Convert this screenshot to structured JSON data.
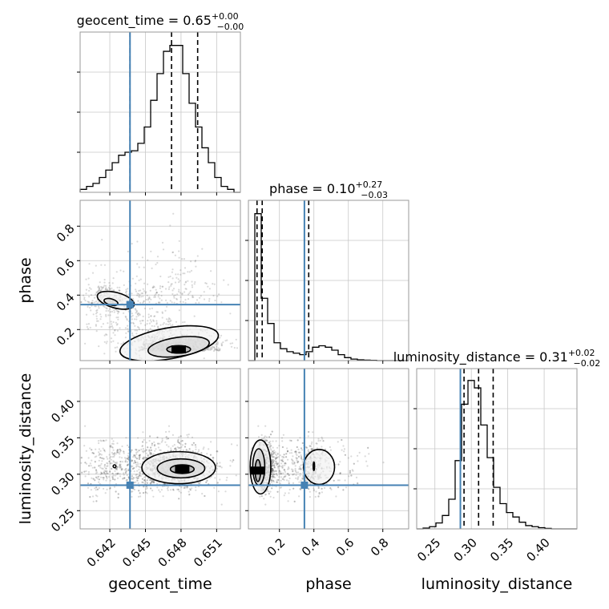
{
  "chart_data": {
    "type": "corner",
    "parameters": [
      "geocent_time",
      "phase",
      "luminosity_distance"
    ],
    "axis_labels": {
      "geocent_time": "geocent_time",
      "phase": "phase",
      "luminosity_distance": "luminosity_distance"
    },
    "truths": {
      "geocent_time": 0.6437,
      "phase": 0.345,
      "luminosity_distance": 0.285
    },
    "quantiles": {
      "geocent_time": [
        0.6437,
        0.6472,
        0.6494
      ],
      "phase": [
        0.07,
        0.1,
        0.37
      ],
      "luminosity_distance": [
        0.29,
        0.31,
        0.33
      ]
    },
    "titles": [
      {
        "param": "geocent_time",
        "text": "geocent_time = 0.65",
        "plus": "+0.00",
        "minus": "−0.00"
      },
      {
        "param": "phase",
        "text": "phase = 0.10",
        "plus": "+0.27",
        "minus": "−0.03"
      },
      {
        "param": "luminosity_distance",
        "text": "luminosity_distance = 0.31",
        "plus": "+0.02",
        "minus": "−0.02"
      }
    ],
    "ranges": {
      "geocent_time": [
        0.6395,
        0.653
      ],
      "phase": [
        0.02,
        0.95
      ],
      "luminosity_distance": [
        0.225,
        0.445
      ]
    },
    "ticks": {
      "geocent_time": [
        0.642,
        0.645,
        0.648,
        0.651
      ],
      "geocent_time_labels": [
        "0.642",
        "0.645",
        "0.648",
        "0.651"
      ],
      "phase": [
        0.2,
        0.4,
        0.6,
        0.8
      ],
      "phase_labels": [
        "0.2",
        "0.4",
        "0.6",
        "0.8"
      ],
      "luminosity_distance": [
        0.25,
        0.3,
        0.35,
        0.4
      ],
      "luminosity_distance_labels": [
        "0.25",
        "0.30",
        "0.35",
        "0.40"
      ]
    },
    "histograms": {
      "geocent_time": [
        0.02,
        0.04,
        0.06,
        0.1,
        0.15,
        0.2,
        0.25,
        0.27,
        0.28,
        0.33,
        0.44,
        0.62,
        0.8,
        0.95,
        0.99,
        0.99,
        0.8,
        0.6,
        0.44,
        0.3,
        0.2,
        0.1,
        0.04,
        0.02,
        0.0
      ],
      "phase": [
        0.0,
        0.99,
        0.42,
        0.25,
        0.12,
        0.08,
        0.06,
        0.05,
        0.04,
        0.06,
        0.09,
        0.1,
        0.09,
        0.07,
        0.04,
        0.02,
        0.01,
        0.005,
        0.003,
        0.002,
        0.0,
        0.0,
        0.0,
        0.0,
        0.0
      ],
      "luminosity_distance": [
        0.0,
        0.005,
        0.015,
        0.04,
        0.09,
        0.2,
        0.46,
        0.84,
        1.0,
        0.95,
        0.7,
        0.48,
        0.28,
        0.17,
        0.11,
        0.08,
        0.045,
        0.022,
        0.015,
        0.008,
        0.003,
        0.0,
        0.0,
        0.0,
        0.0
      ]
    },
    "histogram_ymax": 1.08,
    "grid": true
  }
}
